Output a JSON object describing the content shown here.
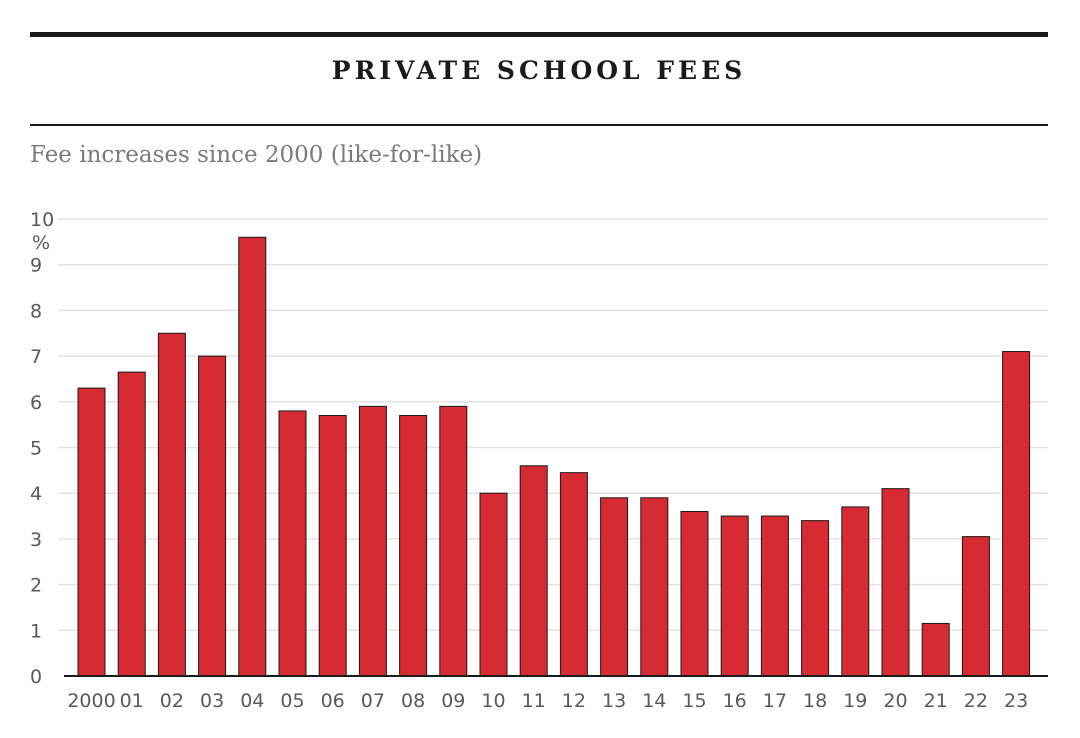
{
  "header": {
    "title": "PRIVATE SCHOOL FEES",
    "subtitle": "Fee increases since 2000 (like-for-like)"
  },
  "chart_data": {
    "type": "bar",
    "categories": [
      "2000",
      "01",
      "02",
      "03",
      "04",
      "05",
      "06",
      "07",
      "08",
      "09",
      "10",
      "11",
      "12",
      "13",
      "14",
      "15",
      "16",
      "17",
      "18",
      "19",
      "20",
      "21",
      "22",
      "23"
    ],
    "values": [
      6.3,
      6.65,
      7.5,
      7.0,
      9.6,
      5.8,
      5.7,
      5.9,
      5.7,
      5.9,
      4.0,
      4.6,
      4.45,
      3.9,
      3.9,
      3.6,
      3.5,
      3.5,
      3.4,
      3.7,
      4.1,
      1.15,
      3.05,
      7.1
    ],
    "ylabel": "%",
    "ylim": [
      0,
      10
    ],
    "yticks": [
      0,
      1,
      2,
      3,
      4,
      5,
      6,
      7,
      8,
      9,
      10
    ],
    "grid": true,
    "bar_color": "#d72b33",
    "bar_stroke": "#1a1a1a"
  }
}
